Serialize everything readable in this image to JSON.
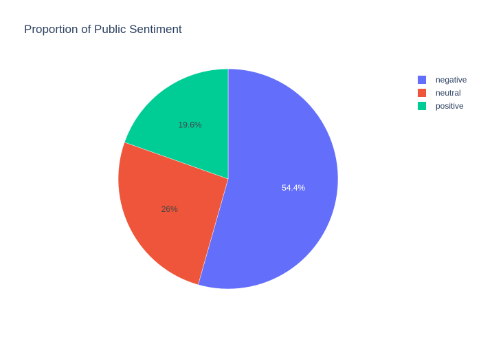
{
  "chart_data": {
    "type": "pie",
    "title": "Proportion of Public Sentiment",
    "labels": [
      "negative",
      "neutral",
      "positive"
    ],
    "values": [
      54.4,
      26,
      19.6
    ],
    "value_labels": [
      "54.4%",
      "26%",
      "19.6%"
    ],
    "colors": [
      "#636efa",
      "#ef553b",
      "#00cc96"
    ],
    "direction": "clockwise",
    "legend_position": "top-right"
  }
}
